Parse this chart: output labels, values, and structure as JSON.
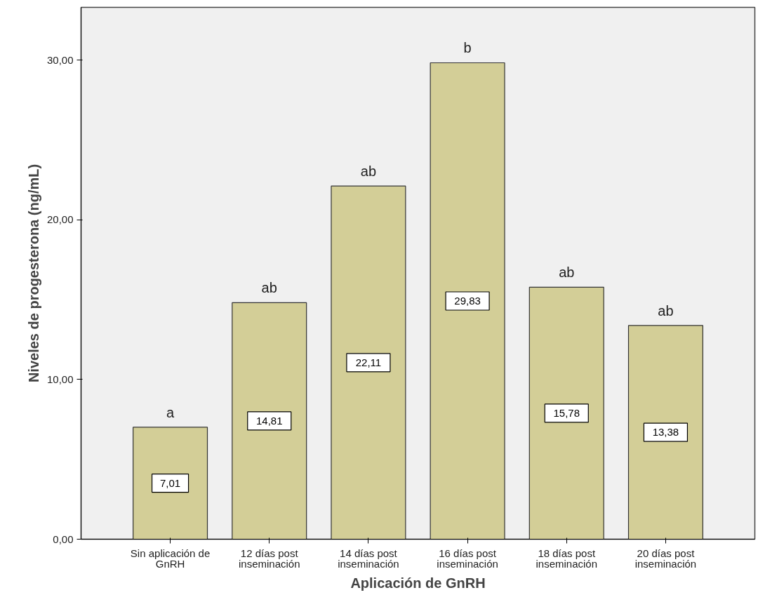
{
  "chart_data": {
    "type": "bar",
    "xlabel": "Aplicación de GnRH",
    "ylabel": "Niveles de progesterona (ng/mL)",
    "categories": [
      "Sin aplicación de\nGnRH",
      "12 días post\ninseminación",
      "14 días post\ninseminación",
      "16 días post\ninseminación",
      "18 días post\ninseminación",
      "20 días post\ninseminación"
    ],
    "values": [
      7.01,
      14.81,
      22.11,
      29.83,
      15.78,
      13.38
    ],
    "value_labels": [
      "7,01",
      "14,81",
      "22,11",
      "29,83",
      "15,78",
      "13,38"
    ],
    "color": "#d3ce97",
    "ylim": [
      0,
      33.3
    ],
    "yticks": [
      {
        "value": 0,
        "label": "0,00"
      },
      {
        "value": 10,
        "label": "10,00"
      },
      {
        "value": 20,
        "label": "20,00"
      },
      {
        "value": 30,
        "label": "30,00"
      }
    ],
    "annotations": [
      {
        "text": "a",
        "x": "Sin aplicación de\nGnRH",
        "y": 7.01
      },
      {
        "text": "ab",
        "x": "12 días post\ninseminación",
        "y": 14.81
      },
      {
        "text": "ab",
        "x": "14 días post\ninseminación",
        "y": 22.11
      },
      {
        "text": "b",
        "x": "16 días post\ninseminación",
        "y": 29.83
      },
      {
        "text": "ab",
        "x": "18 días post\ninseminación",
        "y": 15.78
      },
      {
        "text": "ab",
        "x": "20 días post\ninseminación",
        "y": 13.38
      }
    ],
    "grid": false
  }
}
